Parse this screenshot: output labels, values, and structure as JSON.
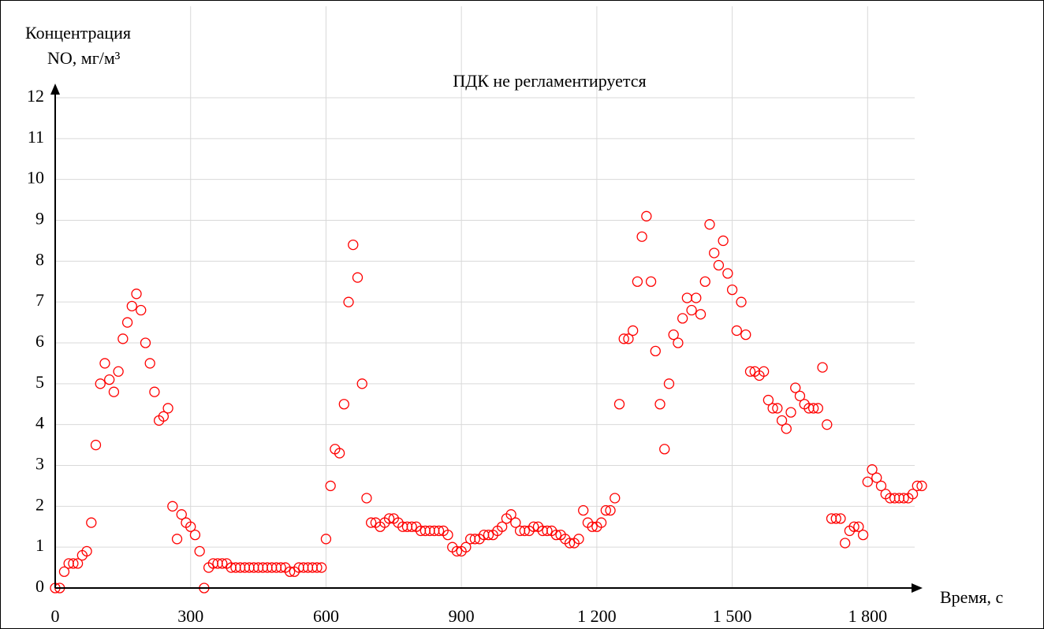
{
  "chart_data": {
    "type": "scatter",
    "y_label_line1": "Концентрация",
    "y_label_line2": "NO, мг/м³",
    "annotation": "ПДК не регламентируется",
    "x_label": "Время, с",
    "marker": "open-circle",
    "color": "#ff0000",
    "grid": true,
    "xlim": [
      0,
      1920
    ],
    "ylim": [
      0,
      12
    ],
    "xticks": [
      0,
      300,
      600,
      900,
      {
        "value": 1200,
        "label": "1 200"
      },
      {
        "value": 1500,
        "label": "1 500"
      },
      {
        "value": 1800,
        "label": "1 800"
      }
    ],
    "yticks": [
      0,
      1,
      2,
      3,
      4,
      5,
      6,
      7,
      8,
      9,
      10,
      11,
      12
    ],
    "x": [
      0,
      10,
      20,
      30,
      40,
      50,
      60,
      70,
      80,
      90,
      100,
      110,
      120,
      130,
      140,
      150,
      160,
      170,
      180,
      190,
      200,
      210,
      220,
      230,
      240,
      250,
      260,
      270,
      280,
      290,
      300,
      310,
      320,
      330,
      340,
      350,
      360,
      370,
      380,
      390,
      400,
      410,
      420,
      430,
      440,
      450,
      460,
      470,
      480,
      490,
      500,
      510,
      520,
      530,
      540,
      550,
      560,
      570,
      580,
      590,
      600,
      610,
      620,
      630,
      640,
      650,
      660,
      670,
      680,
      690,
      700,
      710,
      720,
      730,
      740,
      750,
      760,
      770,
      780,
      790,
      800,
      810,
      820,
      830,
      840,
      850,
      860,
      870,
      880,
      890,
      900,
      910,
      920,
      930,
      940,
      950,
      960,
      970,
      980,
      990,
      1000,
      1010,
      1020,
      1030,
      1040,
      1050,
      1060,
      1070,
      1080,
      1090,
      1100,
      1110,
      1120,
      1130,
      1140,
      1150,
      1160,
      1170,
      1180,
      1190,
      1200,
      1210,
      1220,
      1230,
      1240,
      1250,
      1260,
      1270,
      1280,
      1290,
      1300,
      1310,
      1320,
      1330,
      1340,
      1350,
      1360,
      1370,
      1380,
      1390,
      1400,
      1410,
      1420,
      1430,
      1440,
      1450,
      1460,
      1470,
      1480,
      1490,
      1500,
      1510,
      1520,
      1530,
      1540,
      1550,
      1560,
      1570,
      1580,
      1590,
      1600,
      1610,
      1620,
      1630,
      1640,
      1650,
      1660,
      1670,
      1680,
      1690,
      1700,
      1710,
      1720,
      1730,
      1740,
      1750,
      1760,
      1770,
      1780,
      1790,
      1800,
      1810,
      1820,
      1830,
      1840,
      1850,
      1860,
      1870,
      1880,
      1890,
      1900,
      1910,
      1920
    ],
    "values": [
      0,
      0,
      0.4,
      0.6,
      0.6,
      0.6,
      0.8,
      0.9,
      1.6,
      3.5,
      5.0,
      5.5,
      5.1,
      4.8,
      5.3,
      6.1,
      6.5,
      6.9,
      7.2,
      6.8,
      6.0,
      5.5,
      4.8,
      4.1,
      4.2,
      4.4,
      2.0,
      1.2,
      1.8,
      1.6,
      1.5,
      1.3,
      0.9,
      0,
      0.5,
      0.6,
      0.6,
      0.6,
      0.6,
      0.5,
      0.5,
      0.5,
      0.5,
      0.5,
      0.5,
      0.5,
      0.5,
      0.5,
      0.5,
      0.5,
      0.5,
      0.5,
      0.4,
      0.4,
      0.5,
      0.5,
      0.5,
      0.5,
      0.5,
      0.5,
      1.2,
      2.5,
      3.4,
      3.3,
      4.5,
      7.0,
      8.4,
      7.6,
      5.0,
      2.2,
      1.6,
      1.6,
      1.5,
      1.6,
      1.7,
      1.7,
      1.6,
      1.5,
      1.5,
      1.5,
      1.5,
      1.4,
      1.4,
      1.4,
      1.4,
      1.4,
      1.4,
      1.3,
      1.0,
      0.9,
      0.9,
      1.0,
      1.2,
      1.2,
      1.2,
      1.3,
      1.3,
      1.3,
      1.4,
      1.5,
      1.7,
      1.8,
      1.6,
      1.4,
      1.4,
      1.4,
      1.5,
      1.5,
      1.4,
      1.4,
      1.4,
      1.3,
      1.3,
      1.2,
      1.1,
      1.1,
      1.2,
      1.9,
      1.6,
      1.5,
      1.5,
      1.6,
      1.9,
      1.9,
      2.2,
      4.5,
      6.1,
      6.1,
      6.3,
      7.5,
      8.6,
      9.1,
      7.5,
      5.8,
      4.5,
      3.4,
      5.0,
      6.2,
      6.0,
      6.6,
      7.1,
      6.8,
      7.1,
      6.7,
      7.5,
      8.9,
      8.2,
      7.9,
      8.5,
      7.7,
      7.3,
      6.3,
      7.0,
      6.2,
      5.3,
      5.3,
      5.2,
      5.3,
      4.6,
      4.4,
      4.4,
      4.1,
      3.9,
      4.3,
      4.9,
      4.7,
      4.5,
      4.4,
      4.4,
      4.4,
      5.4,
      4.0,
      1.7,
      1.7,
      1.7,
      1.1,
      1.4,
      1.5,
      1.5,
      1.3,
      2.6,
      2.9,
      2.7,
      2.5,
      2.3,
      2.2,
      2.2,
      2.2,
      2.2,
      2.2,
      2.3,
      2.5,
      2.5
    ]
  }
}
